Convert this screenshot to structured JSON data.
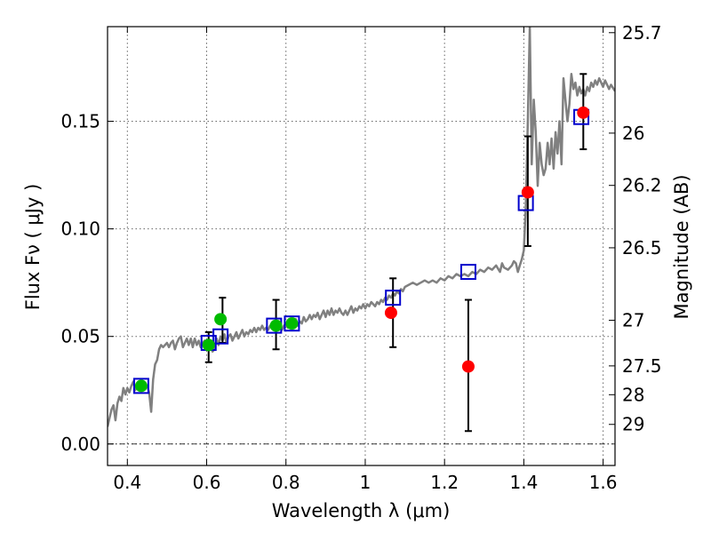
{
  "chart_data": {
    "type": "scatter",
    "xlabel": "Wavelength  λ (μm)",
    "ylabel": "Flux  Fν  ( μJy )",
    "y2label": "Magnitude (AB)",
    "xlim": [
      0.35,
      1.63
    ],
    "ylim": [
      -0.01,
      0.194
    ],
    "grid": true,
    "x_ticks": [
      0.4,
      0.6,
      0.8,
      1.0,
      1.2,
      1.4,
      1.6
    ],
    "x_tick_labels": [
      "0.4",
      "0.6",
      "0.8",
      "1",
      "1.2",
      "1.4",
      "1.6"
    ],
    "y_ticks": [
      0.0,
      0.05,
      0.1,
      0.15
    ],
    "y_tick_labels": [
      "0.00",
      "0.05",
      "0.10",
      "0.15"
    ],
    "y2_ticks": [
      {
        "label": "25.7",
        "flux": 0.1912
      },
      {
        "label": "26",
        "flux": 0.1445
      },
      {
        "label": "26.2",
        "flux": 0.1202
      },
      {
        "label": "26.5",
        "flux": 0.0912
      },
      {
        "label": "27",
        "flux": 0.0575
      },
      {
        "label": "27.5",
        "flux": 0.0363
      },
      {
        "label": "28",
        "flux": 0.0229
      },
      {
        "label": "29",
        "flux": 0.0091
      }
    ],
    "series": [
      {
        "type": "line",
        "color": "#808080",
        "points": [
          [
            0.35,
            0.008
          ],
          [
            0.355,
            0.012
          ],
          [
            0.36,
            0.016
          ],
          [
            0.365,
            0.018
          ],
          [
            0.37,
            0.011
          ],
          [
            0.375,
            0.019
          ],
          [
            0.38,
            0.022
          ],
          [
            0.385,
            0.02
          ],
          [
            0.39,
            0.026
          ],
          [
            0.395,
            0.023
          ],
          [
            0.4,
            0.026
          ],
          [
            0.405,
            0.024
          ],
          [
            0.41,
            0.027
          ],
          [
            0.415,
            0.029
          ],
          [
            0.42,
            0.025
          ],
          [
            0.425,
            0.028
          ],
          [
            0.43,
            0.026
          ],
          [
            0.435,
            0.028
          ],
          [
            0.44,
            0.027
          ],
          [
            0.445,
            0.026
          ],
          [
            0.45,
            0.027
          ],
          [
            0.455,
            0.024
          ],
          [
            0.46,
            0.015
          ],
          [
            0.465,
            0.03
          ],
          [
            0.47,
            0.037
          ],
          [
            0.475,
            0.039
          ],
          [
            0.48,
            0.044
          ],
          [
            0.485,
            0.046
          ],
          [
            0.49,
            0.045
          ],
          [
            0.495,
            0.046
          ],
          [
            0.5,
            0.047
          ],
          [
            0.505,
            0.045
          ],
          [
            0.51,
            0.047
          ],
          [
            0.515,
            0.048
          ],
          [
            0.52,
            0.044
          ],
          [
            0.525,
            0.047
          ],
          [
            0.53,
            0.049
          ],
          [
            0.535,
            0.05
          ],
          [
            0.54,
            0.045
          ],
          [
            0.545,
            0.047
          ],
          [
            0.55,
            0.049
          ],
          [
            0.555,
            0.046
          ],
          [
            0.56,
            0.049
          ],
          [
            0.565,
            0.045
          ],
          [
            0.57,
            0.049
          ],
          [
            0.575,
            0.046
          ],
          [
            0.58,
            0.048
          ],
          [
            0.585,
            0.045
          ],
          [
            0.59,
            0.047
          ],
          [
            0.595,
            0.048
          ],
          [
            0.6,
            0.046
          ],
          [
            0.605,
            0.044
          ],
          [
            0.61,
            0.045
          ],
          [
            0.615,
            0.043
          ],
          [
            0.62,
            0.044
          ],
          [
            0.625,
            0.049
          ],
          [
            0.63,
            0.046
          ],
          [
            0.635,
            0.05
          ],
          [
            0.64,
            0.048
          ],
          [
            0.645,
            0.051
          ],
          [
            0.65,
            0.047
          ],
          [
            0.655,
            0.05
          ],
          [
            0.66,
            0.051
          ],
          [
            0.665,
            0.048
          ],
          [
            0.67,
            0.05
          ],
          [
            0.675,
            0.052
          ],
          [
            0.68,
            0.049
          ],
          [
            0.685,
            0.051
          ],
          [
            0.69,
            0.053
          ],
          [
            0.695,
            0.05
          ],
          [
            0.7,
            0.052
          ],
          [
            0.705,
            0.051
          ],
          [
            0.71,
            0.053
          ],
          [
            0.715,
            0.052
          ],
          [
            0.72,
            0.054
          ],
          [
            0.725,
            0.052
          ],
          [
            0.73,
            0.054
          ],
          [
            0.735,
            0.053
          ],
          [
            0.74,
            0.055
          ],
          [
            0.745,
            0.053
          ],
          [
            0.75,
            0.054
          ],
          [
            0.755,
            0.053
          ],
          [
            0.76,
            0.055
          ],
          [
            0.765,
            0.054
          ],
          [
            0.77,
            0.053
          ],
          [
            0.775,
            0.055
          ],
          [
            0.78,
            0.054
          ],
          [
            0.785,
            0.056
          ],
          [
            0.79,
            0.053
          ],
          [
            0.795,
            0.055
          ],
          [
            0.8,
            0.056
          ],
          [
            0.805,
            0.054
          ],
          [
            0.81,
            0.057
          ],
          [
            0.815,
            0.055
          ],
          [
            0.82,
            0.056
          ],
          [
            0.825,
            0.058
          ],
          [
            0.83,
            0.055
          ],
          [
            0.835,
            0.057
          ],
          [
            0.84,
            0.056
          ],
          [
            0.845,
            0.059
          ],
          [
            0.85,
            0.057
          ],
          [
            0.855,
            0.058
          ],
          [
            0.86,
            0.06
          ],
          [
            0.865,
            0.058
          ],
          [
            0.87,
            0.06
          ],
          [
            0.875,
            0.059
          ],
          [
            0.88,
            0.061
          ],
          [
            0.885,
            0.058
          ],
          [
            0.89,
            0.06
          ],
          [
            0.895,
            0.062
          ],
          [
            0.9,
            0.059
          ],
          [
            0.905,
            0.062
          ],
          [
            0.91,
            0.06
          ],
          [
            0.915,
            0.063
          ],
          [
            0.92,
            0.06
          ],
          [
            0.925,
            0.062
          ],
          [
            0.93,
            0.061
          ],
          [
            0.935,
            0.063
          ],
          [
            0.94,
            0.061
          ],
          [
            0.945,
            0.06
          ],
          [
            0.95,
            0.062
          ],
          [
            0.955,
            0.06
          ],
          [
            0.96,
            0.062
          ],
          [
            0.965,
            0.064
          ],
          [
            0.97,
            0.061
          ],
          [
            0.975,
            0.063
          ],
          [
            0.98,
            0.062
          ],
          [
            0.985,
            0.064
          ],
          [
            0.99,
            0.063
          ],
          [
            0.995,
            0.065
          ],
          [
            1.0,
            0.063
          ],
          [
            1.005,
            0.065
          ],
          [
            1.01,
            0.064
          ],
          [
            1.015,
            0.066
          ],
          [
            1.02,
            0.065
          ],
          [
            1.025,
            0.064
          ],
          [
            1.03,
            0.066
          ],
          [
            1.035,
            0.065
          ],
          [
            1.04,
            0.067
          ],
          [
            1.045,
            0.066
          ],
          [
            1.05,
            0.068
          ],
          [
            1.055,
            0.067
          ],
          [
            1.06,
            0.069
          ],
          [
            1.065,
            0.068
          ],
          [
            1.07,
            0.07
          ],
          [
            1.075,
            0.069
          ],
          [
            1.08,
            0.071
          ],
          [
            1.085,
            0.07
          ],
          [
            1.09,
            0.072
          ],
          [
            1.095,
            0.071
          ],
          [
            1.1,
            0.073
          ],
          [
            1.11,
            0.074
          ],
          [
            1.12,
            0.075
          ],
          [
            1.13,
            0.074
          ],
          [
            1.14,
            0.075
          ],
          [
            1.15,
            0.076
          ],
          [
            1.16,
            0.075
          ],
          [
            1.17,
            0.076
          ],
          [
            1.18,
            0.075
          ],
          [
            1.19,
            0.077
          ],
          [
            1.2,
            0.076
          ],
          [
            1.21,
            0.078
          ],
          [
            1.22,
            0.077
          ],
          [
            1.23,
            0.079
          ],
          [
            1.24,
            0.078
          ],
          [
            1.25,
            0.079
          ],
          [
            1.26,
            0.078
          ],
          [
            1.27,
            0.08
          ],
          [
            1.28,
            0.079
          ],
          [
            1.29,
            0.081
          ],
          [
            1.3,
            0.08
          ],
          [
            1.31,
            0.082
          ],
          [
            1.32,
            0.081
          ],
          [
            1.33,
            0.083
          ],
          [
            1.34,
            0.08
          ],
          [
            1.345,
            0.084
          ],
          [
            1.35,
            0.082
          ],
          [
            1.36,
            0.081
          ],
          [
            1.37,
            0.083
          ],
          [
            1.375,
            0.085
          ],
          [
            1.38,
            0.084
          ],
          [
            1.385,
            0.08
          ],
          [
            1.39,
            0.083
          ],
          [
            1.395,
            0.086
          ],
          [
            1.4,
            0.09
          ],
          [
            1.405,
            0.11
          ],
          [
            1.41,
            0.15
          ],
          [
            1.415,
            0.194
          ],
          [
            1.42,
            0.13
          ],
          [
            1.425,
            0.16
          ],
          [
            1.43,
            0.145
          ],
          [
            1.435,
            0.12
          ],
          [
            1.44,
            0.14
          ],
          [
            1.445,
            0.13
          ],
          [
            1.45,
            0.125
          ],
          [
            1.455,
            0.128
          ],
          [
            1.46,
            0.14
          ],
          [
            1.465,
            0.13
          ],
          [
            1.47,
            0.142
          ],
          [
            1.475,
            0.128
          ],
          [
            1.48,
            0.145
          ],
          [
            1.485,
            0.135
          ],
          [
            1.49,
            0.15
          ],
          [
            1.495,
            0.13
          ],
          [
            1.5,
            0.17
          ],
          [
            1.505,
            0.16
          ],
          [
            1.51,
            0.15
          ],
          [
            1.515,
            0.158
          ],
          [
            1.52,
            0.172
          ],
          [
            1.525,
            0.165
          ],
          [
            1.53,
            0.168
          ],
          [
            1.535,
            0.162
          ],
          [
            1.54,
            0.166
          ],
          [
            1.545,
            0.163
          ],
          [
            1.55,
            0.165
          ],
          [
            1.555,
            0.162
          ],
          [
            1.56,
            0.166
          ],
          [
            1.565,
            0.164
          ],
          [
            1.57,
            0.168
          ],
          [
            1.575,
            0.166
          ],
          [
            1.58,
            0.169
          ],
          [
            1.585,
            0.167
          ],
          [
            1.59,
            0.17
          ],
          [
            1.595,
            0.168
          ],
          [
            1.6,
            0.166
          ],
          [
            1.605,
            0.169
          ],
          [
            1.61,
            0.167
          ],
          [
            1.615,
            0.165
          ],
          [
            1.62,
            0.167
          ],
          [
            1.63,
            0.164
          ]
        ]
      },
      {
        "type": "marker-square",
        "color": "#0000cc",
        "x": [
          0.435,
          0.605,
          0.635,
          0.77,
          0.815,
          1.07,
          1.26,
          1.405,
          1.545
        ],
        "y": [
          0.027,
          0.047,
          0.05,
          0.055,
          0.056,
          0.068,
          0.08,
          0.112,
          0.152
        ]
      },
      {
        "type": "marker-circle",
        "color": "#00bb00",
        "x": [
          0.435,
          0.605,
          0.635,
          0.775,
          0.815
        ],
        "y": [
          0.027,
          0.046,
          0.058,
          0.055,
          0.056
        ]
      },
      {
        "type": "marker-circle",
        "color": "#ff0000",
        "x": [
          1.065,
          1.26,
          1.41,
          1.55
        ],
        "y": [
          0.061,
          0.036,
          0.117,
          0.154
        ]
      },
      {
        "type": "errorbar",
        "color": "#000000",
        "x": [
          0.605,
          0.64,
          0.775,
          1.07,
          1.26,
          1.41,
          1.55
        ],
        "low": [
          0.038,
          0.047,
          0.044,
          0.045,
          0.006,
          0.092,
          0.137
        ],
        "high": [
          0.052,
          0.068,
          0.067,
          0.077,
          0.067,
          0.143,
          0.172
        ]
      }
    ]
  }
}
